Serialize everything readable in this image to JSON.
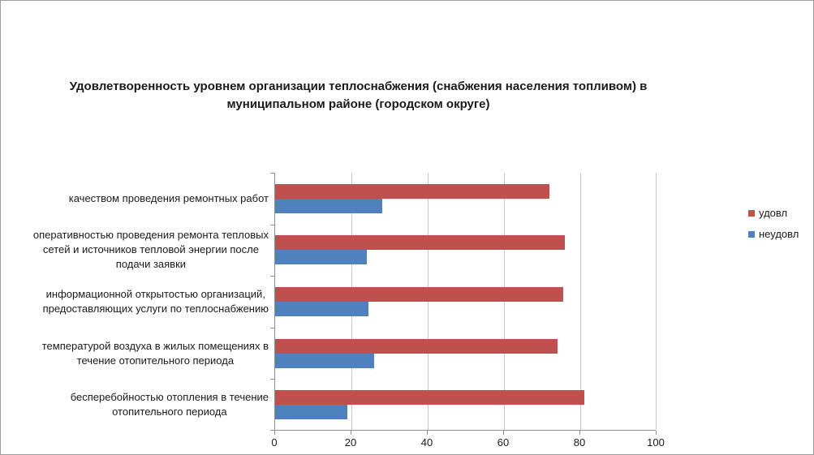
{
  "frame": {
    "background": "#ffffff",
    "border_color": "#9d9d9d"
  },
  "chart_data": {
    "type": "bar",
    "orientation": "horizontal",
    "title": "Удовлетворенность уровнем организации  теплоснабжения (снабжения населения топливом) в\nмуниципальном районе (городском округе)",
    "categories": [
      "качеством проведения  ремонтных работ",
      "оперативностью проведения ремонта тепловых\nсетей и источников тепловой энергии после\nподачи заявки",
      "информационной открытостью организаций,\nпредоставляющих услуги по теплоснабжению",
      "температурой воздуха в жилых помещениях  в\nтечение  отопительного периода",
      "бесперебойностью  отопления в течение\nотопительного периода"
    ],
    "series": [
      {
        "key": "udovl",
        "name": "удовл",
        "color": "#C0504D",
        "values": [
          72,
          76,
          75.5,
          74,
          81
        ]
      },
      {
        "key": "neudovl",
        "name": "неудовл",
        "color": "#4F81BD",
        "values": [
          28,
          24,
          24.5,
          26,
          19
        ]
      }
    ],
    "xlabel": "",
    "ylabel": "",
    "xlim": [
      0,
      100
    ],
    "xticks": [
      0,
      20,
      40,
      60,
      80,
      100
    ],
    "grid": "vertical",
    "legend_position": "right",
    "gridline_color": "#c6c6c6",
    "axis_color": "#8e8e8e",
    "text_color": "#1a1a1a"
  }
}
